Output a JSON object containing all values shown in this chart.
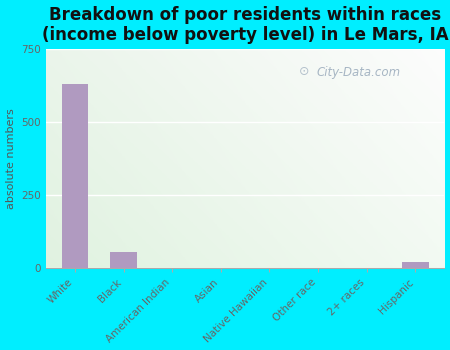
{
  "title": "Breakdown of poor residents within races\n(income below poverty level) in Le Mars, IA",
  "categories": [
    "White",
    "Black",
    "American Indian",
    "Asian",
    "Native Hawaiian",
    "Other race",
    "2+ races",
    "Hispanic"
  ],
  "values": [
    630,
    55,
    0,
    0,
    0,
    0,
    0,
    20
  ],
  "bar_color": "#b09ac0",
  "ylabel": "absolute numbers",
  "ylim": [
    0,
    750
  ],
  "yticks": [
    0,
    250,
    500,
    750
  ],
  "background_outer": "#00eeff",
  "bg_top_left": "#eaf5e8",
  "bg_top_right": "#f5faf5",
  "bg_bottom_left": "#d8efd8",
  "bg_bottom_right": "#eaf5f0",
  "grid_color": "#ffffff",
  "title_fontsize": 12,
  "axis_label_fontsize": 8,
  "tick_fontsize": 7.5,
  "watermark_color": "#aabbcc"
}
